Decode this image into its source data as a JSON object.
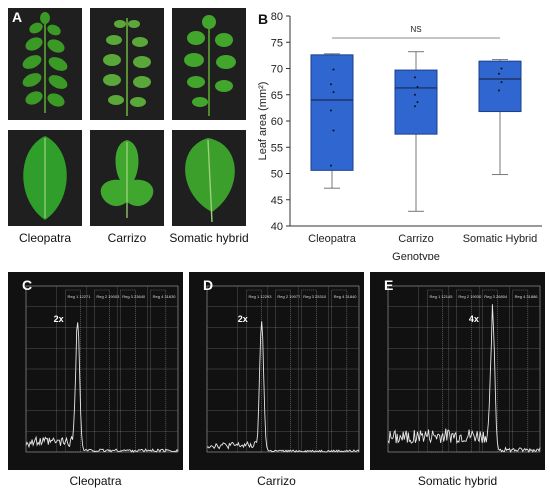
{
  "panels": {
    "a": {
      "label": "A",
      "captions": [
        "Cleopatra",
        "Carrizo",
        "Somatic hybrid"
      ]
    },
    "b": {
      "label": "B"
    },
    "c": {
      "label": "C",
      "ploidy": "2x",
      "caption": "Cleopatra",
      "regions": [
        "Reg 1 12271",
        "Reg 2 19003",
        "Reg 3 23640",
        "Reg 4 31630"
      ]
    },
    "d": {
      "label": "D",
      "ploidy": "2x",
      "caption": "Carrizo",
      "regions": [
        "Reg 1 12293",
        "Reg 2 19077",
        "Reg 3 25310",
        "Reg 4 31840"
      ]
    },
    "e": {
      "label": "E",
      "ploidy": "4x",
      "caption": "Somatic hybrid",
      "regions": [
        "Reg 1 12145",
        "Reg 2 19030",
        "Reg 3 26804",
        "Reg 4 31886"
      ]
    }
  },
  "chart_data": {
    "type": "box",
    "title": "",
    "xlabel": "Genotype",
    "ylabel": "Leaf area (mm²)",
    "ylim": [
      40,
      80
    ],
    "yticks": [
      40,
      45,
      50,
      55,
      60,
      65,
      70,
      75,
      80
    ],
    "categories": [
      "Cleopatra",
      "Carrizo",
      "Somatic Hybrid"
    ],
    "boxes": [
      {
        "min": 47.2,
        "q1": 50.6,
        "median": 64.0,
        "q3": 72.6,
        "max": 72.8,
        "points": [
          51.5,
          58.2,
          62.0,
          65.5,
          67.0,
          69.8
        ]
      },
      {
        "min": 42.8,
        "q1": 57.5,
        "median": 66.3,
        "q3": 69.7,
        "max": 73.2,
        "points": [
          62.8,
          63.6,
          65.0,
          66.5,
          68.3
        ]
      },
      {
        "min": 49.8,
        "q1": 61.8,
        "median": 68.0,
        "q3": 71.4,
        "max": 71.7,
        "points": [
          65.8,
          67.4,
          69.0,
          70.0
        ]
      }
    ],
    "significance": "NS",
    "box_color": "#2f66cf",
    "grid": false
  },
  "colors": {
    "box": "#2f66cf",
    "box_edge": "#1d3f8a",
    "trace": "#e8e8e8",
    "hist_bg": "#101010"
  }
}
